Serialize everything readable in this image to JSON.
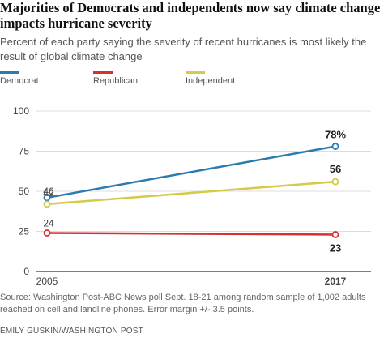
{
  "header": {
    "title": "Majorities of Democrats and independents now say climate change impacts hurricane severity",
    "subtitle": "Percent of each party saying the severity of recent hurricanes is most likely the result of global climate change"
  },
  "footer": {
    "source": "Source: Washington Post-ABC News poll Sept. 18-21 among random sample of 1,002 adults reached on cell and landline phones. Error margin +/- 3.5 points.",
    "credit": "EMILY GUSKIN/WASHINGTON POST"
  },
  "colors": {
    "Democrat": "#2b7bb0",
    "Republican": "#d73030",
    "Independent": "#d5c94a"
  },
  "chart_data": {
    "type": "line",
    "title": "Majorities of Democrats and independents now say climate change impacts hurricane severity",
    "subtitle": "Percent of each party saying the severity of recent hurricanes is most likely the result of global climate change",
    "x": [
      "2005",
      "2017"
    ],
    "ylim": [
      0,
      100
    ],
    "yticks": [
      "100",
      "75",
      "50",
      "25",
      "0"
    ],
    "grid": true,
    "legend_position": "top-left",
    "series": [
      {
        "name": "Democrat",
        "values": [
          46,
          78
        ],
        "labels": [
          "46",
          "78%"
        ]
      },
      {
        "name": "Republican",
        "values": [
          24,
          23
        ],
        "labels": [
          "24",
          "23"
        ]
      },
      {
        "name": "Independent",
        "values": [
          42,
          56
        ],
        "labels": [
          "42",
          "56"
        ]
      }
    ]
  }
}
